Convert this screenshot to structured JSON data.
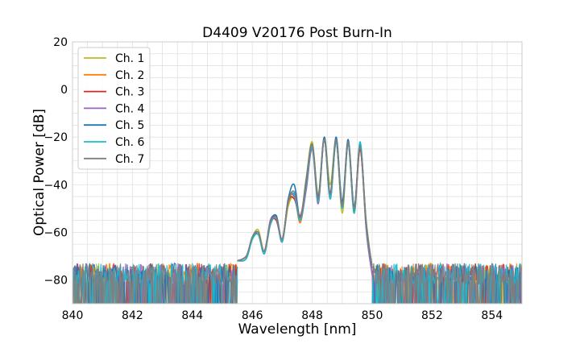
{
  "chart_data": {
    "type": "line",
    "title": "D4409 V20176 Post Burn-In",
    "xlabel": "Wavelength [nm]",
    "ylabel": "Optical Power [dB]",
    "xlim": [
      840,
      855
    ],
    "ylim": [
      -90,
      20
    ],
    "xticks": [
      840,
      842,
      844,
      846,
      848,
      850,
      852,
      854
    ],
    "yticks": [
      -80,
      -60,
      -40,
      -20,
      0,
      20
    ],
    "x_minor_step": 0.5,
    "y_minor_step": 5,
    "grid": true,
    "legend_placement": "top-left",
    "noise_floor_db": [
      -90,
      -73
    ],
    "passband_edges_nm": [
      845.8,
      849.8
    ],
    "series": [
      {
        "name": "Ch. 1",
        "color": "#bcbd22",
        "x": [
          845.5,
          845.8,
          846.0,
          846.2,
          846.4,
          846.6,
          846.8,
          847.0,
          847.2,
          847.4,
          847.6,
          847.8,
          848.0,
          848.2,
          848.4,
          848.6,
          848.8,
          849.0,
          849.2,
          849.4,
          849.6,
          849.8,
          850.0
        ],
        "y": [
          -72,
          -70,
          -62,
          -59,
          -68,
          -56,
          -54,
          -63,
          -49,
          -45,
          -54,
          -37,
          -22,
          -44,
          -20,
          -40,
          -21,
          -52,
          -22,
          -50,
          -24,
          -55,
          -75
        ]
      },
      {
        "name": "Ch. 2",
        "color": "#ff7f0e",
        "x": [
          845.5,
          845.8,
          846.0,
          846.2,
          846.4,
          846.6,
          846.8,
          847.0,
          847.2,
          847.4,
          847.6,
          847.8,
          848.0,
          848.2,
          848.4,
          848.6,
          848.8,
          849.0,
          849.2,
          849.4,
          849.6,
          849.8,
          850.0
        ],
        "y": [
          -72,
          -70,
          -63,
          -60,
          -69,
          -57,
          -53,
          -64,
          -48,
          -44,
          -56,
          -40,
          -23,
          -47,
          -20,
          -45,
          -21,
          -50,
          -22,
          -52,
          -24,
          -58,
          -74
        ]
      },
      {
        "name": "Ch. 3",
        "color": "#d62728",
        "x": [
          845.5,
          845.8,
          846.0,
          846.2,
          846.4,
          846.6,
          846.8,
          847.0,
          847.2,
          847.4,
          847.6,
          847.8,
          848.0,
          848.2,
          848.4,
          848.6,
          848.8,
          849.0,
          849.2,
          849.4,
          849.6,
          849.8,
          850.0
        ],
        "y": [
          -72,
          -71,
          -62,
          -61,
          -68,
          -56,
          -55,
          -63,
          -47,
          -46,
          -53,
          -41,
          -24,
          -46,
          -21,
          -44,
          -22,
          -49,
          -23,
          -51,
          -25,
          -57,
          -75
        ]
      },
      {
        "name": "Ch. 4",
        "color": "#9467bd",
        "x": [
          845.5,
          845.8,
          846.0,
          846.2,
          846.4,
          846.6,
          846.8,
          847.0,
          847.2,
          847.4,
          847.6,
          847.8,
          848.0,
          848.2,
          848.4,
          848.6,
          848.8,
          849.0,
          849.2,
          849.4,
          849.6,
          849.8,
          850.0
        ],
        "y": [
          -72,
          -70,
          -63,
          -60,
          -69,
          -55,
          -54,
          -64,
          -46,
          -45,
          -55,
          -42,
          -25,
          -48,
          -21,
          -46,
          -21,
          -48,
          -22,
          -50,
          -23,
          -59,
          -78
        ]
      },
      {
        "name": "Ch. 5",
        "color": "#1f77b4",
        "x": [
          845.5,
          845.8,
          846.0,
          846.2,
          846.4,
          846.6,
          846.8,
          847.0,
          847.2,
          847.4,
          847.6,
          847.8,
          848.0,
          848.2,
          848.4,
          848.6,
          848.8,
          849.0,
          849.2,
          849.4,
          849.6,
          849.8,
          850.0
        ],
        "y": [
          -72,
          -70,
          -62,
          -60,
          -68,
          -56,
          -53,
          -63,
          -46,
          -40,
          -54,
          -38,
          -23,
          -45,
          -20,
          -43,
          -20,
          -47,
          -21,
          -49,
          -23,
          -56,
          -75
        ]
      },
      {
        "name": "Ch. 6",
        "color": "#17becf",
        "x": [
          845.5,
          845.8,
          846.0,
          846.2,
          846.4,
          846.6,
          846.8,
          847.0,
          847.2,
          847.4,
          847.6,
          847.8,
          848.0,
          848.2,
          848.4,
          848.6,
          848.8,
          849.0,
          849.2,
          849.4,
          849.6,
          849.8,
          850.0
        ],
        "y": [
          -72,
          -71,
          -63,
          -61,
          -69,
          -57,
          -54,
          -64,
          -47,
          -44,
          -55,
          -40,
          -24,
          -47,
          -21,
          -46,
          -22,
          -50,
          -23,
          -52,
          -22,
          -57,
          -75
        ]
      },
      {
        "name": "Ch. 7",
        "color": "#7f7f7f",
        "x": [
          845.5,
          845.8,
          846.0,
          846.2,
          846.4,
          846.6,
          846.8,
          847.0,
          847.2,
          847.4,
          847.6,
          847.8,
          848.0,
          848.2,
          848.4,
          848.6,
          848.8,
          849.0,
          849.2,
          849.4,
          849.6,
          849.8,
          850.0
        ],
        "y": [
          -72,
          -70,
          -62,
          -60,
          -68,
          -56,
          -54,
          -63,
          -47,
          -43,
          -54,
          -39,
          -23,
          -46,
          -21,
          -44,
          -21,
          -49,
          -22,
          -50,
          -24,
          -57,
          -75
        ]
      }
    ]
  }
}
